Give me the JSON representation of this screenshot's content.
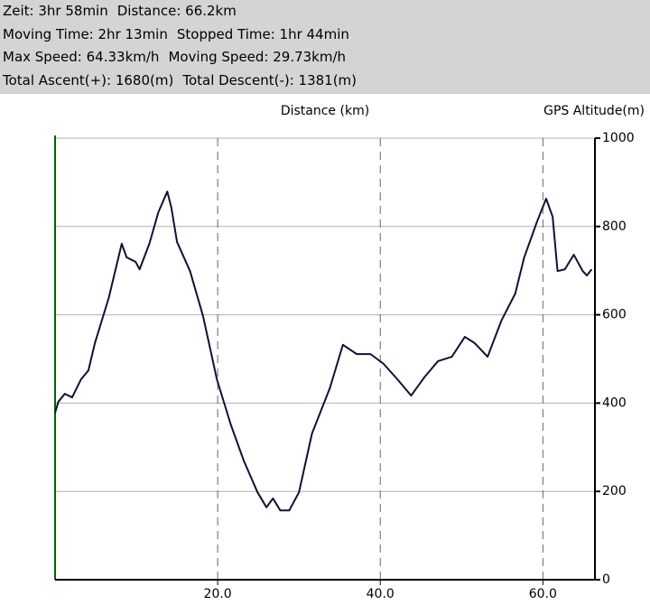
{
  "header": {
    "lines": [
      [
        "Zeit: 3hr 58min",
        "Distance: 66.2km"
      ],
      [
        "Moving Time: 2hr 13min",
        "Stopped Time: 1hr 44min"
      ],
      [
        "Max Speed: 64.33km/h",
        "Moving Speed: 29.73km/h"
      ],
      [
        "Total Ascent(+): 1680(m)",
        "Total Descent(-): 1381(m)"
      ]
    ]
  },
  "chart_data": {
    "type": "line",
    "x_label": "Distance (km)",
    "y_label": "GPS Altitude(m)",
    "x": [
      0,
      0.4,
      1.2,
      2.1,
      3.2,
      4.1,
      4.9,
      6.6,
      8.2,
      8.8,
      9.9,
      10.4,
      11.6,
      12.7,
      13.8,
      14.3,
      15.0,
      16.6,
      18.2,
      19.9,
      21.6,
      23.2,
      24.9,
      26.0,
      26.8,
      27.7,
      28.8,
      30.0,
      31.6,
      33.8,
      35.4,
      37.1,
      38.8,
      40.4,
      42.1,
      43.8,
      45.4,
      47.1,
      48.8,
      50.4,
      51.6,
      53.2,
      54.9,
      56.6,
      57.7,
      59.3,
      60.4,
      61.2,
      61.8,
      62.7,
      63.8,
      64.9,
      65.4,
      66.0
    ],
    "series": [
      {
        "name": "GPS Altitude",
        "color": "#111133",
        "values": [
          378,
          403,
          421,
          413,
          454,
          474,
          536,
          638,
          761,
          730,
          720,
          703,
          761,
          832,
          879,
          843,
          765,
          699,
          597,
          454,
          352,
          270,
          198,
          164,
          184,
          157,
          157,
          198,
          331,
          434,
          532,
          511,
          511,
          489,
          454,
          417,
          458,
          495,
          505,
          550,
          536,
          505,
          587,
          648,
          730,
          812,
          863,
          822,
          699,
          703,
          736,
          699,
          689,
          703
        ]
      }
    ],
    "xlim": [
      0,
      66.4
    ],
    "ylim": [
      0,
      1000
    ],
    "xticks": [
      {
        "value": 20,
        "label": "20.0"
      },
      {
        "value": 40,
        "label": "40.0"
      },
      {
        "value": 60,
        "label": "60.0"
      }
    ],
    "yticks": [
      0,
      200,
      400,
      600,
      800,
      1000
    ],
    "grid": true
  }
}
